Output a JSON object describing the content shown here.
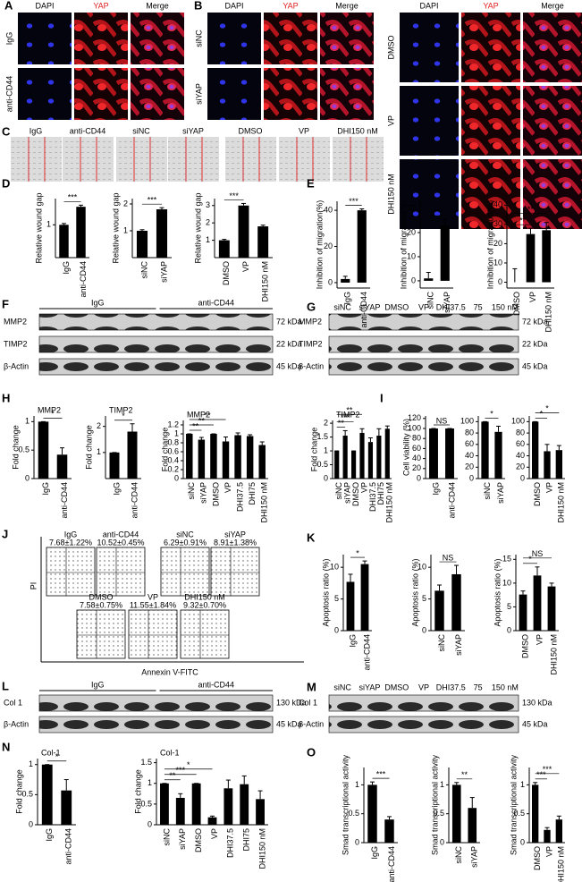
{
  "panels": {
    "A": {
      "letter": "A",
      "columns": [
        "DAPI",
        "YAP",
        "Merge"
      ],
      "rows": [
        "IgG",
        "anti-CD44"
      ]
    },
    "B": {
      "letter": "B",
      "columns": [
        "DAPI",
        "YAP",
        "Merge"
      ],
      "rows": [
        "siNC",
        "siYAP"
      ]
    },
    "B2": {
      "columns": [
        "DAPI",
        "YAP",
        "Merge"
      ],
      "rows": [
        "DMSO",
        "VP",
        "DHI150 nM"
      ]
    },
    "C": {
      "letter": "C",
      "labels": [
        "IgG",
        "anti-CD44",
        "siNC",
        "siYAP",
        "DMSO",
        "VP",
        "DHI150 nM"
      ]
    },
    "D": {
      "letter": "D"
    },
    "E": {
      "letter": "E"
    },
    "F": {
      "letter": "F",
      "groups": [
        "IgG",
        "anti-CD44"
      ],
      "rows": [
        "MMP2",
        "TIMP2",
        "β-Actin"
      ],
      "sizes": [
        "72 kDa",
        "22 kDa",
        "45 kDa"
      ]
    },
    "G": {
      "letter": "G",
      "lanes": [
        "siNC",
        "siYAP",
        "DMSO",
        "VP",
        "DHI37.5",
        "75",
        "150 nM"
      ],
      "rows": [
        "MMP2",
        "TIMP2",
        "β-Actin"
      ],
      "sizes": [
        "72 kDa",
        "22 kDa",
        "45 kDa"
      ]
    },
    "H": {
      "letter": "H"
    },
    "I": {
      "letter": "I"
    },
    "J": {
      "letter": "J",
      "samples": [
        {
          "name": "IgG",
          "value": "7.68±1.22%"
        },
        {
          "name": "anti-CD44",
          "value": "10.52±0.45%"
        },
        {
          "name": "siNC",
          "value": "6.29±0.91%"
        },
        {
          "name": "siYAP",
          "value": "8.91±1.38%"
        },
        {
          "name": "DMSO",
          "value": "7.58±0.75%"
        },
        {
          "name": "VP",
          "value": "11.55±1.84%"
        },
        {
          "name": "DHI150 nM",
          "value": "9.32±0.70%"
        }
      ],
      "y_label": "PI",
      "x_label": "Annexin V-FITC"
    },
    "K": {
      "letter": "K"
    },
    "L": {
      "letter": "L",
      "groups": [
        "IgG",
        "anti-CD44"
      ],
      "rows": [
        "Col 1",
        "β-Actin"
      ],
      "sizes": [
        "130 kDa",
        "45 kDa"
      ]
    },
    "M": {
      "letter": "M",
      "lanes": [
        "siNC",
        "siYAP",
        "DMSO",
        "VP",
        "DHI37.5",
        "75",
        "150 nM"
      ],
      "rows": [
        "Col 1",
        "β-Actin"
      ],
      "sizes": [
        "130 kDa",
        "45 kDa"
      ]
    },
    "N": {
      "letter": "N"
    },
    "O": {
      "letter": "O"
    }
  },
  "chart_data": [
    {
      "type": "bar",
      "y_label": "Relative wound gap",
      "categories": [
        "IgG",
        "anti-CD44"
      ],
      "values": [
        1.0,
        1.55
      ],
      "errors": [
        0.04,
        0.05
      ],
      "ylim": [
        0,
        1.8
      ],
      "yticks": [
        1
      ],
      "annotations": [
        "***"
      ]
    },
    {
      "type": "bar",
      "y_label": "Relative wound gap",
      "categories": [
        "siNC",
        "siYAP"
      ],
      "values": [
        1.0,
        1.8
      ],
      "errors": [
        0.04,
        0.06
      ],
      "ylim": [
        0,
        2.2
      ],
      "yticks": [
        1,
        2
      ],
      "annotations": [
        "***"
      ]
    },
    {
      "type": "bar",
      "y_label": "Relative wound gap",
      "categories": [
        "DMSO",
        "VP",
        "DHI150 nM"
      ],
      "values": [
        1.0,
        3.0,
        1.8
      ],
      "errors": [
        0.05,
        0.12,
        0.07
      ],
      "ylim": [
        0,
        3.4
      ],
      "yticks": [
        1,
        2,
        3
      ],
      "annotations": [
        "***"
      ]
    },
    {
      "type": "bar",
      "y_label": "Inhibition of migration(%)",
      "categories": [
        "IgG",
        "anti-CD44"
      ],
      "values": [
        2,
        40
      ],
      "errors": [
        1.5,
        0.8
      ],
      "ylim": [
        -3,
        45
      ],
      "yticks": [
        0,
        20,
        40
      ],
      "annotations": [
        "***"
      ]
    },
    {
      "type": "bar",
      "y_label": "Inhibition of migration(%)",
      "categories": [
        "siNC",
        "siYAP"
      ],
      "values": [
        1,
        23
      ],
      "errors": [
        2.5,
        2.5
      ],
      "ylim": [
        -3,
        33
      ],
      "yticks": [
        0,
        10,
        20,
        30
      ],
      "annotations": [
        "**"
      ]
    },
    {
      "type": "bar",
      "y_label": "Inhibition of migration(%)",
      "categories": [
        "DMSO",
        "VP",
        "DHI150 nM"
      ],
      "values": [
        0,
        25,
        27
      ],
      "errors": [
        7,
        3,
        4
      ],
      "ylim": [
        -3,
        42
      ],
      "yticks": [
        0,
        10,
        20,
        30,
        40
      ],
      "annotations": [
        "**",
        "**"
      ]
    },
    {
      "type": "bar",
      "title": "MMP2",
      "y_label": "Fold change",
      "categories": [
        "IgG",
        "anti-CD44"
      ],
      "values": [
        1.0,
        0.42
      ],
      "errors": [
        0.0,
        0.12
      ],
      "ylim": [
        0,
        1.1
      ],
      "yticks": [
        0,
        0.5,
        1
      ],
      "annotations": [
        "*"
      ]
    },
    {
      "type": "bar",
      "title": "TIMP2",
      "y_label": "Fold change",
      "categories": [
        "IgG",
        "anti-CD44"
      ],
      "values": [
        1.0,
        1.8
      ],
      "errors": [
        0.0,
        0.3
      ],
      "ylim": [
        0,
        2.4
      ],
      "yticks": [
        1,
        2
      ],
      "annotations": [
        "*"
      ]
    },
    {
      "type": "bar",
      "title": "MMP2",
      "y_label": "Fold change",
      "categories": [
        "siNC",
        "siYAP",
        "DMSO",
        "VP",
        "DHI37.5",
        "DHI75",
        "DHI150 nM"
      ],
      "values": [
        1.0,
        0.87,
        1.0,
        0.83,
        0.97,
        0.95,
        0.75
      ],
      "errors": [
        0.0,
        0.05,
        0.0,
        0.1,
        0.05,
        0.03,
        0.07
      ],
      "ylim": [
        0,
        1.3
      ],
      "yticks": [
        0,
        0.2,
        0.4,
        0.6,
        0.8,
        1,
        1.2
      ],
      "annotations": [
        "**",
        "**",
        "**"
      ]
    },
    {
      "type": "bar",
      "title": "TIMP2",
      "y_label": "Fold change",
      "categories": [
        "siNC",
        "siYAP",
        "DMSO",
        "VP",
        "DHI37.5",
        "DHI75",
        "DHI150 nM"
      ],
      "values": [
        1.0,
        1.55,
        1.0,
        1.65,
        1.32,
        1.55,
        1.8
      ],
      "errors": [
        0.0,
        0.18,
        0.0,
        0.15,
        0.15,
        0.25,
        0.1
      ],
      "ylim": [
        0,
        2.1
      ],
      "yticks": [
        0,
        0.5,
        1,
        1.5,
        2
      ],
      "annotations": [
        "**",
        "***",
        "**"
      ]
    },
    {
      "type": "bar",
      "y_label": "Cell viability (%)",
      "categories": [
        "IgG",
        "anti-CD44"
      ],
      "values": [
        100,
        100
      ],
      "errors": [
        0,
        0
      ],
      "ylim": [
        0,
        125
      ],
      "yticks": [
        0,
        20,
        40,
        60,
        80,
        100,
        120
      ],
      "annotations": [
        "NS"
      ]
    },
    {
      "type": "bar",
      "categories": [
        "siNC",
        "siYAP"
      ],
      "values": [
        100,
        82
      ],
      "errors": [
        0,
        10
      ],
      "ylim": [
        0,
        110
      ],
      "yticks": [
        0,
        20,
        40,
        60,
        80,
        100
      ],
      "annotations": [
        "*"
      ]
    },
    {
      "type": "bar",
      "categories": [
        "DMSO",
        "VP",
        "DHI150 nM"
      ],
      "values": [
        100,
        48,
        50
      ],
      "errors": [
        0,
        12,
        8
      ],
      "ylim": [
        0,
        110
      ],
      "yticks": [
        0,
        20,
        40,
        60,
        80,
        100
      ],
      "annotations": [
        "*",
        "*"
      ]
    },
    {
      "type": "bar",
      "y_label": "Apoptosis ratio (%)",
      "categories": [
        "IgG",
        "anti-CD44"
      ],
      "values": [
        7.7,
        10.5
      ],
      "errors": [
        1.2,
        0.5
      ],
      "ylim": [
        0,
        12
      ],
      "yticks": [
        0,
        5,
        10
      ],
      "annotations": [
        "*"
      ]
    },
    {
      "type": "bar",
      "y_label": "Apoptosis ratio (%)",
      "categories": [
        "siNC",
        "siYAP"
      ],
      "values": [
        6.3,
        8.9
      ],
      "errors": [
        0.9,
        1.4
      ],
      "ylim": [
        0,
        12
      ],
      "yticks": [
        0,
        5,
        10
      ],
      "annotations": [
        "NS"
      ]
    },
    {
      "type": "bar",
      "y_label": "Apoptosis ratio (%)",
      "categories": [
        "DMSO",
        "VP",
        "DHI150 nM"
      ],
      "values": [
        7.6,
        11.6,
        9.3
      ],
      "errors": [
        0.75,
        1.8,
        0.7
      ],
      "ylim": [
        0,
        16
      ],
      "yticks": [
        0,
        5,
        10,
        15
      ],
      "annotations": [
        "*",
        "NS"
      ]
    },
    {
      "type": "bar",
      "title": "Col-1",
      "y_label": "Fold change",
      "categories": [
        "IgG",
        "anti-CD44"
      ],
      "values": [
        1.0,
        0.57
      ],
      "errors": [
        0.0,
        0.18
      ],
      "ylim": [
        0,
        1.1
      ],
      "yticks": [
        0,
        0.5,
        1
      ],
      "annotations": [
        "*"
      ]
    },
    {
      "type": "bar",
      "title": "Col-1",
      "y_label": "Fold change",
      "categories": [
        "siNC",
        "siYAP",
        "DMSO",
        "VP",
        "DHI37.5",
        "DHI75",
        "DHI150 nM"
      ],
      "values": [
        1.0,
        0.65,
        1.0,
        0.18,
        0.88,
        0.98,
        0.62
      ],
      "errors": [
        0.0,
        0.1,
        0.0,
        0.03,
        0.2,
        0.2,
        0.2
      ],
      "ylim": [
        0,
        1.6
      ],
      "yticks": [
        0,
        0.5,
        1,
        1.5
      ],
      "annotations": [
        "**",
        "***",
        "*"
      ]
    },
    {
      "type": "bar",
      "y_label": "Smad transcriptional activity",
      "categories": [
        "IgG",
        "anti-CD44"
      ],
      "values": [
        1.0,
        0.4
      ],
      "errors": [
        0.05,
        0.05
      ],
      "ylim": [
        0,
        1.3
      ],
      "yticks": [
        0,
        0.5,
        1
      ],
      "annotations": [
        "***"
      ]
    },
    {
      "type": "bar",
      "y_label": "Smad transcriptional activity",
      "categories": [
        "siNC",
        "siYAP"
      ],
      "values": [
        1.0,
        0.6
      ],
      "errors": [
        0.04,
        0.18
      ],
      "ylim": [
        0,
        1.3
      ],
      "yticks": [
        0,
        0.5,
        1
      ],
      "annotations": [
        "**"
      ]
    },
    {
      "type": "bar",
      "y_label": "Smad transcriptional activity",
      "categories": [
        "DMSO",
        "VP",
        "DHI150 nM"
      ],
      "values": [
        1.0,
        0.22,
        0.4
      ],
      "errors": [
        0.04,
        0.04,
        0.06
      ],
      "ylim": [
        0,
        1.3
      ],
      "yticks": [
        0,
        0.5,
        1
      ],
      "annotations": [
        "***",
        "***"
      ]
    }
  ]
}
